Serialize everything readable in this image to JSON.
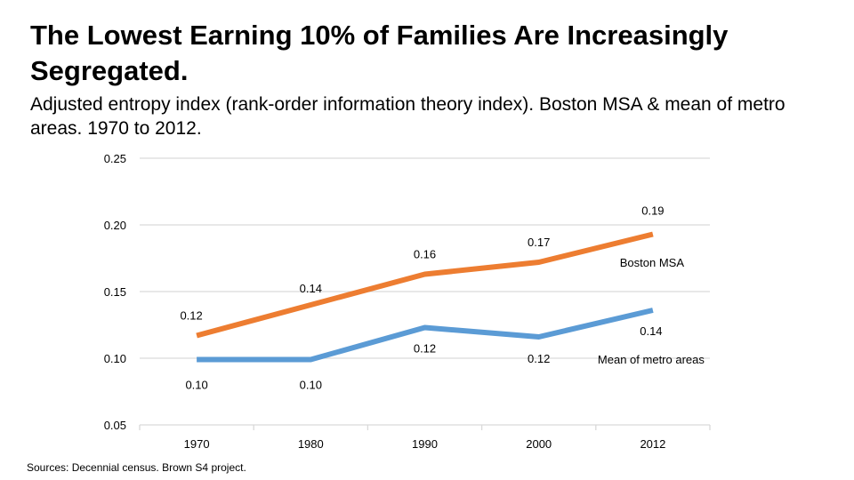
{
  "title": "The Lowest Earning 10% of Families Are Increasingly Segregated.",
  "subtitle": "Adjusted entropy index (rank-order information theory index). Boston MSA & mean of metro areas. 1970 to 2012.",
  "source": "Sources: Decennial census. Brown S4 project.",
  "colors": {
    "boston": "#ED7D31",
    "metro": "#5B9BD5",
    "grid": "#D9D9D9"
  },
  "chart_data": {
    "type": "line",
    "categories": [
      "1970",
      "1980",
      "1990",
      "2000",
      "2012"
    ],
    "ylim": [
      0.05,
      0.25
    ],
    "yticks": [
      "0.05",
      "0.10",
      "0.15",
      "0.20",
      "0.25"
    ],
    "grid": true,
    "series": [
      {
        "name": "Boston MSA",
        "values": [
          0.117,
          0.14,
          0.163,
          0.172,
          0.193
        ],
        "labels": [
          "0.12",
          "0.14",
          "0.16",
          "0.17",
          "0.19"
        ]
      },
      {
        "name": "Mean of metro areas",
        "values": [
          0.099,
          0.099,
          0.123,
          0.116,
          0.136
        ],
        "labels": [
          "0.10",
          "0.10",
          "0.12",
          "0.12",
          "0.14"
        ]
      }
    ]
  }
}
